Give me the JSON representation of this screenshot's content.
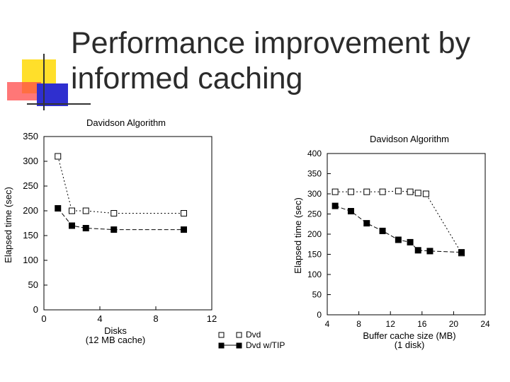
{
  "slide": {
    "title_line1": "Performance improvement by",
    "title_line2": "informed caching"
  },
  "colors": {
    "deco_yellow": "#ffdf2a",
    "deco_red": "#ff4a4a",
    "deco_blue": "#2f2fcf",
    "title_color": "#2b2b2b",
    "axis_color": "#000000"
  },
  "chart_data": [
    {
      "type": "line",
      "title": "Davidson Algorithm",
      "xlabel": "Disks",
      "xlabel2": "(12 MB cache)",
      "ylabel": "Elapsed time (sec)",
      "xlim": [
        0,
        12
      ],
      "ylim": [
        0,
        350
      ],
      "xticks": [
        0,
        4,
        8,
        12
      ],
      "yticks": [
        0,
        50,
        100,
        150,
        200,
        250,
        300,
        350
      ],
      "series": [
        {
          "name": "Dvd",
          "marker": "open-square",
          "x": [
            1,
            2,
            3,
            5,
            10
          ],
          "y": [
            310,
            200,
            200,
            195,
            195
          ]
        },
        {
          "name": "Dvd w/TIP",
          "marker": "filled-square",
          "x": [
            1,
            2,
            3,
            5,
            10
          ],
          "y": [
            205,
            170,
            165,
            162,
            162
          ]
        }
      ],
      "legend": [
        {
          "label": "Dvd",
          "marker": "open-square"
        },
        {
          "label": "Dvd w/TIP",
          "marker": "filled-square"
        }
      ],
      "legend_position": "bottom-right"
    },
    {
      "type": "line",
      "title": "Davidson Algorithm",
      "xlabel": "Buffer cache size (MB)",
      "xlabel2": "(1 disk)",
      "ylabel": "Elapsed time (sec)",
      "xlim": [
        4,
        24
      ],
      "ylim": [
        0,
        400
      ],
      "xticks": [
        4,
        8,
        12,
        16,
        20,
        24
      ],
      "yticks": [
        0,
        50,
        100,
        150,
        200,
        250,
        300,
        350,
        400
      ],
      "series": [
        {
          "name": "Dvd",
          "marker": "open-square",
          "x": [
            5,
            7,
            9,
            11,
            13,
            14.5,
            15.5,
            16.5,
            21
          ],
          "y": [
            305,
            305,
            305,
            305,
            307,
            305,
            302,
            300,
            153
          ]
        },
        {
          "name": "Dvd w/TIP",
          "marker": "filled-square",
          "x": [
            5,
            7,
            9,
            11,
            13,
            14.5,
            15.5,
            17,
            21
          ],
          "y": [
            270,
            257,
            227,
            208,
            186,
            180,
            160,
            158,
            155
          ]
        }
      ]
    }
  ]
}
